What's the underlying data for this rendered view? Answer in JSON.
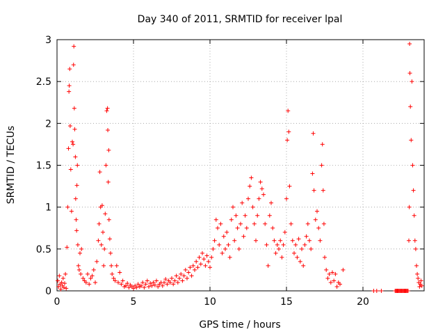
{
  "chart_data": {
    "type": "scatter",
    "title": "Day 340 of 2011, SRMTID for receiver lpal",
    "xlabel": "GPS time / hours",
    "ylabel": "SRMTID / TECUs",
    "xlim": [
      0,
      24
    ],
    "ylim": [
      0,
      3
    ],
    "xticks": [
      0,
      5,
      10,
      15,
      20
    ],
    "yticks": [
      0,
      0.5,
      1,
      1.5,
      2,
      2.5,
      3
    ],
    "xtick_labels": [
      "0",
      "5",
      "10",
      "15",
      "20"
    ],
    "ytick_labels": [
      "0",
      "0.5",
      "1",
      "1.5",
      "2",
      "2.5",
      "3"
    ],
    "grid": true,
    "marker": "+",
    "series": [
      {
        "name": "SRMTID",
        "color": "#ff0000",
        "points": [
          [
            0.05,
            0.12
          ],
          [
            0.1,
            0.05
          ],
          [
            0.15,
            0.18
          ],
          [
            0.2,
            0.08
          ],
          [
            0.25,
            0.02
          ],
          [
            0.3,
            0.1
          ],
          [
            0.35,
            0.06
          ],
          [
            0.4,
            0.15
          ],
          [
            0.45,
            0.04
          ],
          [
            0.5,
            0.09
          ],
          [
            0.55,
            0.2
          ],
          [
            0.6,
            0.03
          ],
          [
            0.65,
            0.52
          ],
          [
            0.7,
            1.0
          ],
          [
            0.75,
            1.7
          ],
          [
            0.78,
            2.38
          ],
          [
            0.8,
            2.45
          ],
          [
            0.83,
            2.65
          ],
          [
            0.86,
            1.97
          ],
          [
            0.9,
            1.45
          ],
          [
            0.95,
            0.95
          ],
          [
            1.0,
            1.78
          ],
          [
            1.05,
            1.75
          ],
          [
            1.08,
            2.7
          ],
          [
            1.1,
            2.92
          ],
          [
            1.13,
            2.18
          ],
          [
            1.16,
            1.93
          ],
          [
            1.2,
            1.6
          ],
          [
            1.22,
            1.1
          ],
          [
            1.25,
            0.85
          ],
          [
            1.28,
            0.72
          ],
          [
            1.3,
            1.26
          ],
          [
            1.33,
            1.5
          ],
          [
            1.36,
            0.55
          ],
          [
            1.4,
            0.3
          ],
          [
            1.45,
            0.25
          ],
          [
            1.5,
            0.45
          ],
          [
            1.55,
            0.2
          ],
          [
            1.6,
            0.5
          ],
          [
            1.7,
            0.15
          ],
          [
            1.8,
            0.12
          ],
          [
            1.9,
            0.1
          ],
          [
            2.0,
            0.2
          ],
          [
            2.1,
            0.08
          ],
          [
            2.2,
            0.15
          ],
          [
            2.3,
            0.18
          ],
          [
            2.4,
            0.25
          ],
          [
            2.5,
            0.1
          ],
          [
            2.6,
            0.35
          ],
          [
            2.7,
            0.6
          ],
          [
            2.75,
            0.8
          ],
          [
            2.8,
            1.42
          ],
          [
            2.85,
            1.0
          ],
          [
            2.9,
            0.55
          ],
          [
            2.95,
            1.02
          ],
          [
            3.0,
            0.7
          ],
          [
            3.05,
            0.3
          ],
          [
            3.1,
            0.5
          ],
          [
            3.15,
            0.92
          ],
          [
            3.2,
            1.5
          ],
          [
            3.25,
            2.15
          ],
          [
            3.3,
            2.18
          ],
          [
            3.32,
            1.92
          ],
          [
            3.35,
            1.3
          ],
          [
            3.38,
            1.68
          ],
          [
            3.4,
            0.85
          ],
          [
            3.45,
            0.62
          ],
          [
            3.5,
            0.45
          ],
          [
            3.55,
            0.3
          ],
          [
            3.6,
            0.2
          ],
          [
            3.7,
            0.15
          ],
          [
            3.8,
            0.12
          ],
          [
            3.9,
            0.3
          ],
          [
            4.0,
            0.1
          ],
          [
            4.1,
            0.22
          ],
          [
            4.2,
            0.08
          ],
          [
            4.3,
            0.12
          ],
          [
            4.4,
            0.05
          ],
          [
            4.5,
            0.06
          ],
          [
            4.6,
            0.09
          ],
          [
            4.7,
            0.04
          ],
          [
            4.8,
            0.07
          ],
          [
            4.9,
            0.05
          ],
          [
            5.0,
            0.03
          ],
          [
            5.1,
            0.06
          ],
          [
            5.2,
            0.04
          ],
          [
            5.3,
            0.08
          ],
          [
            5.4,
            0.05
          ],
          [
            5.5,
            0.06
          ],
          [
            5.6,
            0.1
          ],
          [
            5.7,
            0.04
          ],
          [
            5.8,
            0.08
          ],
          [
            5.9,
            0.12
          ],
          [
            6.0,
            0.05
          ],
          [
            6.1,
            0.09
          ],
          [
            6.2,
            0.06
          ],
          [
            6.3,
            0.1
          ],
          [
            6.4,
            0.07
          ],
          [
            6.5,
            0.12
          ],
          [
            6.6,
            0.05
          ],
          [
            6.7,
            0.08
          ],
          [
            6.8,
            0.1
          ],
          [
            6.9,
            0.06
          ],
          [
            7.0,
            0.1
          ],
          [
            7.1,
            0.14
          ],
          [
            7.2,
            0.08
          ],
          [
            7.3,
            0.12
          ],
          [
            7.4,
            0.1
          ],
          [
            7.5,
            0.15
          ],
          [
            7.6,
            0.08
          ],
          [
            7.7,
            0.12
          ],
          [
            7.8,
            0.18
          ],
          [
            7.9,
            0.1
          ],
          [
            8.0,
            0.15
          ],
          [
            8.1,
            0.2
          ],
          [
            8.2,
            0.12
          ],
          [
            8.3,
            0.18
          ],
          [
            8.4,
            0.25
          ],
          [
            8.5,
            0.15
          ],
          [
            8.6,
            0.22
          ],
          [
            8.7,
            0.28
          ],
          [
            8.8,
            0.18
          ],
          [
            8.9,
            0.3
          ],
          [
            9.0,
            0.25
          ],
          [
            9.1,
            0.35
          ],
          [
            9.2,
            0.28
          ],
          [
            9.3,
            0.4
          ],
          [
            9.4,
            0.32
          ],
          [
            9.5,
            0.45
          ],
          [
            9.6,
            0.38
          ],
          [
            9.7,
            0.3
          ],
          [
            9.8,
            0.42
          ],
          [
            9.9,
            0.35
          ],
          [
            10.0,
            0.28
          ],
          [
            10.1,
            0.4
          ],
          [
            10.2,
            0.5
          ],
          [
            10.3,
            0.6
          ],
          [
            10.4,
            0.85
          ],
          [
            10.5,
            0.75
          ],
          [
            10.6,
            0.55
          ],
          [
            10.7,
            0.8
          ],
          [
            10.8,
            0.45
          ],
          [
            10.9,
            0.65
          ],
          [
            11.0,
            0.5
          ],
          [
            11.1,
            0.7
          ],
          [
            11.2,
            0.55
          ],
          [
            11.3,
            0.4
          ],
          [
            11.4,
            0.85
          ],
          [
            11.5,
            1.0
          ],
          [
            11.6,
            0.6
          ],
          [
            11.7,
            0.9
          ],
          [
            11.8,
            0.75
          ],
          [
            11.9,
            0.5
          ],
          [
            12.0,
            0.8
          ],
          [
            12.1,
            1.05
          ],
          [
            12.2,
            0.65
          ],
          [
            12.3,
            0.9
          ],
          [
            12.4,
            0.75
          ],
          [
            12.5,
            1.1
          ],
          [
            12.6,
            1.25
          ],
          [
            12.7,
            1.35
          ],
          [
            12.8,
            1.0
          ],
          [
            12.9,
            0.8
          ],
          [
            13.0,
            0.6
          ],
          [
            13.1,
            0.9
          ],
          [
            13.2,
            1.1
          ],
          [
            13.3,
            1.3
          ],
          [
            13.4,
            1.22
          ],
          [
            13.5,
            1.15
          ],
          [
            13.6,
            0.8
          ],
          [
            13.7,
            0.55
          ],
          [
            13.8,
            0.3
          ],
          [
            13.9,
            0.9
          ],
          [
            14.0,
            1.05
          ],
          [
            14.1,
            0.75
          ],
          [
            14.2,
            0.6
          ],
          [
            14.3,
            0.45
          ],
          [
            14.4,
            0.55
          ],
          [
            14.5,
            0.5
          ],
          [
            14.6,
            0.6
          ],
          [
            14.7,
            0.4
          ],
          [
            14.8,
            0.55
          ],
          [
            14.9,
            0.7
          ],
          [
            15.0,
            1.1
          ],
          [
            15.05,
            1.8
          ],
          [
            15.1,
            2.15
          ],
          [
            15.15,
            1.9
          ],
          [
            15.2,
            1.25
          ],
          [
            15.3,
            0.8
          ],
          [
            15.4,
            0.6
          ],
          [
            15.5,
            0.45
          ],
          [
            15.6,
            0.55
          ],
          [
            15.7,
            0.4
          ],
          [
            15.8,
            0.62
          ],
          [
            15.9,
            0.35
          ],
          [
            16.0,
            0.5
          ],
          [
            16.1,
            0.3
          ],
          [
            16.2,
            0.55
          ],
          [
            16.3,
            0.65
          ],
          [
            16.4,
            0.8
          ],
          [
            16.5,
            0.6
          ],
          [
            16.6,
            0.5
          ],
          [
            16.7,
            1.4
          ],
          [
            16.75,
            1.88
          ],
          [
            16.8,
            1.2
          ],
          [
            16.9,
            0.85
          ],
          [
            17.0,
            0.95
          ],
          [
            17.1,
            0.75
          ],
          [
            17.2,
            0.6
          ],
          [
            17.3,
            1.5
          ],
          [
            17.35,
            1.75
          ],
          [
            17.4,
            1.2
          ],
          [
            17.45,
            0.8
          ],
          [
            17.5,
            0.4
          ],
          [
            17.6,
            0.25
          ],
          [
            17.7,
            0.15
          ],
          [
            17.8,
            0.2
          ],
          [
            17.9,
            0.1
          ],
          [
            18.0,
            0.22
          ],
          [
            18.1,
            0.12
          ],
          [
            18.2,
            0.2
          ],
          [
            18.3,
            0.05
          ],
          [
            18.4,
            0.1
          ],
          [
            18.5,
            0.08
          ],
          [
            18.7,
            0.25
          ],
          [
            20.7,
            0.0
          ],
          [
            20.9,
            0.0
          ],
          [
            21.2,
            0.0
          ],
          [
            22.1,
            0.0
          ],
          [
            22.15,
            0.0
          ],
          [
            22.2,
            0.0
          ],
          [
            22.25,
            0.0
          ],
          [
            22.3,
            0.0
          ],
          [
            22.35,
            0.0
          ],
          [
            22.4,
            0.0
          ],
          [
            22.45,
            0.0
          ],
          [
            22.5,
            0.0
          ],
          [
            22.55,
            0.0
          ],
          [
            22.6,
            0.0
          ],
          [
            22.65,
            0.0
          ],
          [
            22.7,
            0.0
          ],
          [
            22.75,
            0.0
          ],
          [
            22.8,
            0.0
          ],
          [
            22.85,
            0.0
          ],
          [
            22.9,
            0.0
          ],
          [
            22.95,
            0.0
          ],
          [
            23.0,
            0.6
          ],
          [
            23.03,
            1.0
          ],
          [
            23.05,
            2.95
          ],
          [
            23.07,
            2.6
          ],
          [
            23.1,
            2.2
          ],
          [
            23.15,
            1.8
          ],
          [
            23.2,
            2.5
          ],
          [
            23.25,
            1.5
          ],
          [
            23.3,
            1.2
          ],
          [
            23.35,
            0.9
          ],
          [
            23.4,
            0.6
          ],
          [
            23.45,
            0.5
          ],
          [
            23.5,
            0.3
          ],
          [
            23.55,
            0.2
          ],
          [
            23.6,
            0.15
          ],
          [
            23.65,
            0.1
          ],
          [
            23.7,
            0.05
          ],
          [
            23.75,
            0.08
          ],
          [
            23.8,
            0.12
          ],
          [
            23.85,
            0.06
          ]
        ]
      }
    ]
  }
}
